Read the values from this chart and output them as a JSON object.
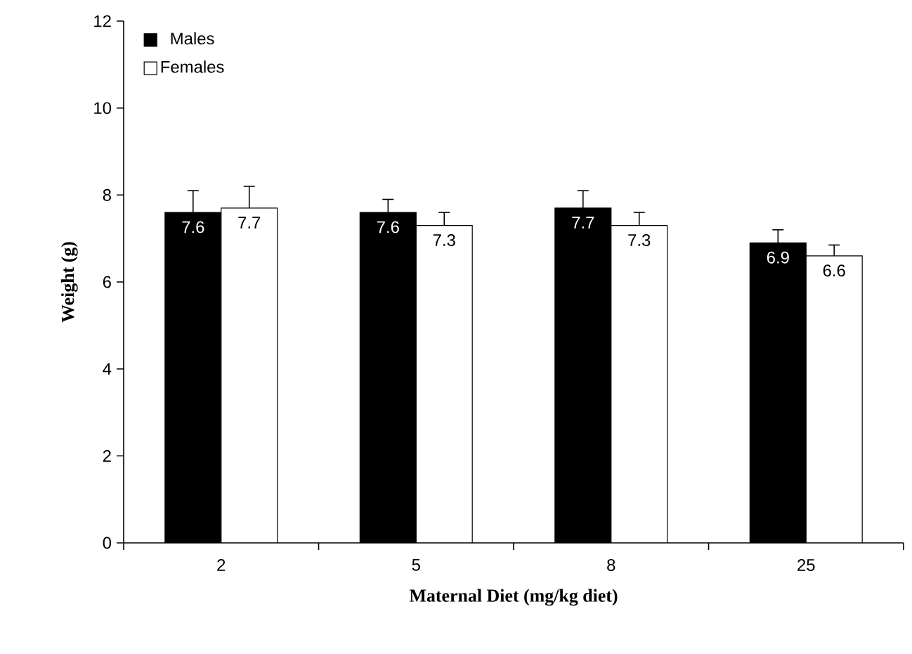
{
  "chart_data": {
    "type": "bar",
    "xlabel": "Maternal Diet (mg/kg diet)",
    "ylabel": "Weight (g)",
    "categories": [
      "2",
      "5",
      "8",
      "25"
    ],
    "series": [
      {
        "name": "Males",
        "color": "#000000",
        "values": [
          7.6,
          7.6,
          7.7,
          6.9
        ],
        "errors": [
          [
            7.6,
            8.1
          ],
          [
            7.6,
            7.9
          ],
          [
            7.7,
            8.1
          ],
          [
            6.9,
            7.2
          ]
        ]
      },
      {
        "name": "Females",
        "color": "#ffffff",
        "values": [
          7.7,
          7.3,
          7.3,
          6.6
        ],
        "errors": [
          [
            7.7,
            8.2
          ],
          [
            7.3,
            7.6
          ],
          [
            7.3,
            7.6
          ],
          [
            6.6,
            6.85
          ]
        ]
      }
    ],
    "ylim": [
      0,
      12
    ],
    "yticks": [
      0,
      2,
      4,
      6,
      8,
      10,
      12
    ],
    "data_labels": true,
    "legend": "top left",
    "grid": false
  }
}
